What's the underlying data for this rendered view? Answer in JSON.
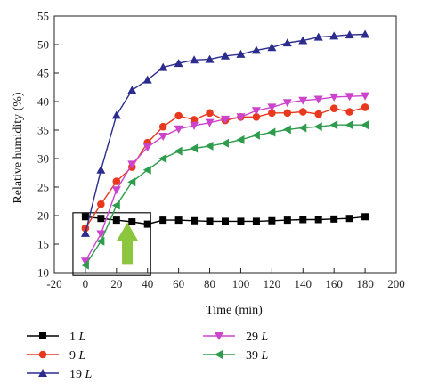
{
  "chart_data": {
    "type": "line",
    "xlabel": "Time (min)",
    "ylabel": "Relative humidity (%)",
    "xlim": [
      -20,
      200
    ],
    "ylim": [
      10,
      55
    ],
    "xticks": [
      -20,
      0,
      20,
      40,
      60,
      80,
      100,
      120,
      140,
      160,
      180,
      200
    ],
    "yticks": [
      10,
      15,
      20,
      25,
      30,
      35,
      40,
      45,
      50,
      55
    ],
    "grid": false,
    "legend_position": "bottom",
    "x": [
      0,
      10,
      20,
      30,
      40,
      50,
      60,
      70,
      80,
      90,
      100,
      110,
      120,
      130,
      140,
      150,
      160,
      170,
      180
    ],
    "series": [
      {
        "name": "1",
        "unit": "L",
        "color": "#000000",
        "marker": "square",
        "values": [
          19.8,
          19.5,
          19.2,
          18.9,
          18.5,
          19.2,
          19.2,
          19.1,
          19.0,
          19.0,
          19.0,
          19.0,
          19.1,
          19.2,
          19.3,
          19.3,
          19.4,
          19.5,
          19.8
        ]
      },
      {
        "name": "9",
        "unit": "L",
        "color": "#e8391e",
        "marker": "circle",
        "values": [
          17.8,
          22.0,
          26.0,
          28.5,
          32.8,
          35.6,
          37.5,
          36.8,
          38.0,
          36.7,
          37.3,
          37.3,
          38.0,
          38.0,
          38.2,
          37.8,
          38.8,
          38.2,
          39.0
        ]
      },
      {
        "name": "19",
        "unit": "L",
        "color": "#2b2c8e",
        "marker": "triangle-up",
        "values": [
          16.9,
          28.0,
          37.6,
          42.0,
          43.8,
          46.0,
          46.7,
          47.3,
          47.4,
          48.0,
          48.3,
          49.0,
          49.5,
          50.3,
          50.7,
          51.3,
          51.5,
          51.7,
          51.8
        ]
      },
      {
        "name": "29",
        "unit": "L",
        "color": "#cc44cc",
        "marker": "triangle-down",
        "values": [
          12.0,
          16.8,
          24.5,
          29.0,
          32.0,
          33.9,
          35.2,
          35.8,
          36.3,
          36.9,
          37.3,
          38.4,
          39.0,
          39.8,
          40.2,
          40.4,
          40.8,
          40.9,
          41.0
        ]
      },
      {
        "name": "39",
        "unit": "L",
        "color": "#2e9c4c",
        "marker": "triangle-left",
        "values": [
          11.3,
          15.5,
          21.8,
          25.9,
          28.0,
          30.0,
          31.3,
          31.8,
          32.2,
          32.7,
          33.3,
          34.1,
          34.6,
          35.1,
          35.4,
          35.6,
          35.9,
          35.9,
          35.9
        ]
      }
    ],
    "annotation": {
      "type": "box-with-up-arrow",
      "x_range": [
        -8,
        42
      ],
      "y_range": [
        9.5,
        20.5
      ],
      "arrow_color": "#8cc63f"
    }
  }
}
